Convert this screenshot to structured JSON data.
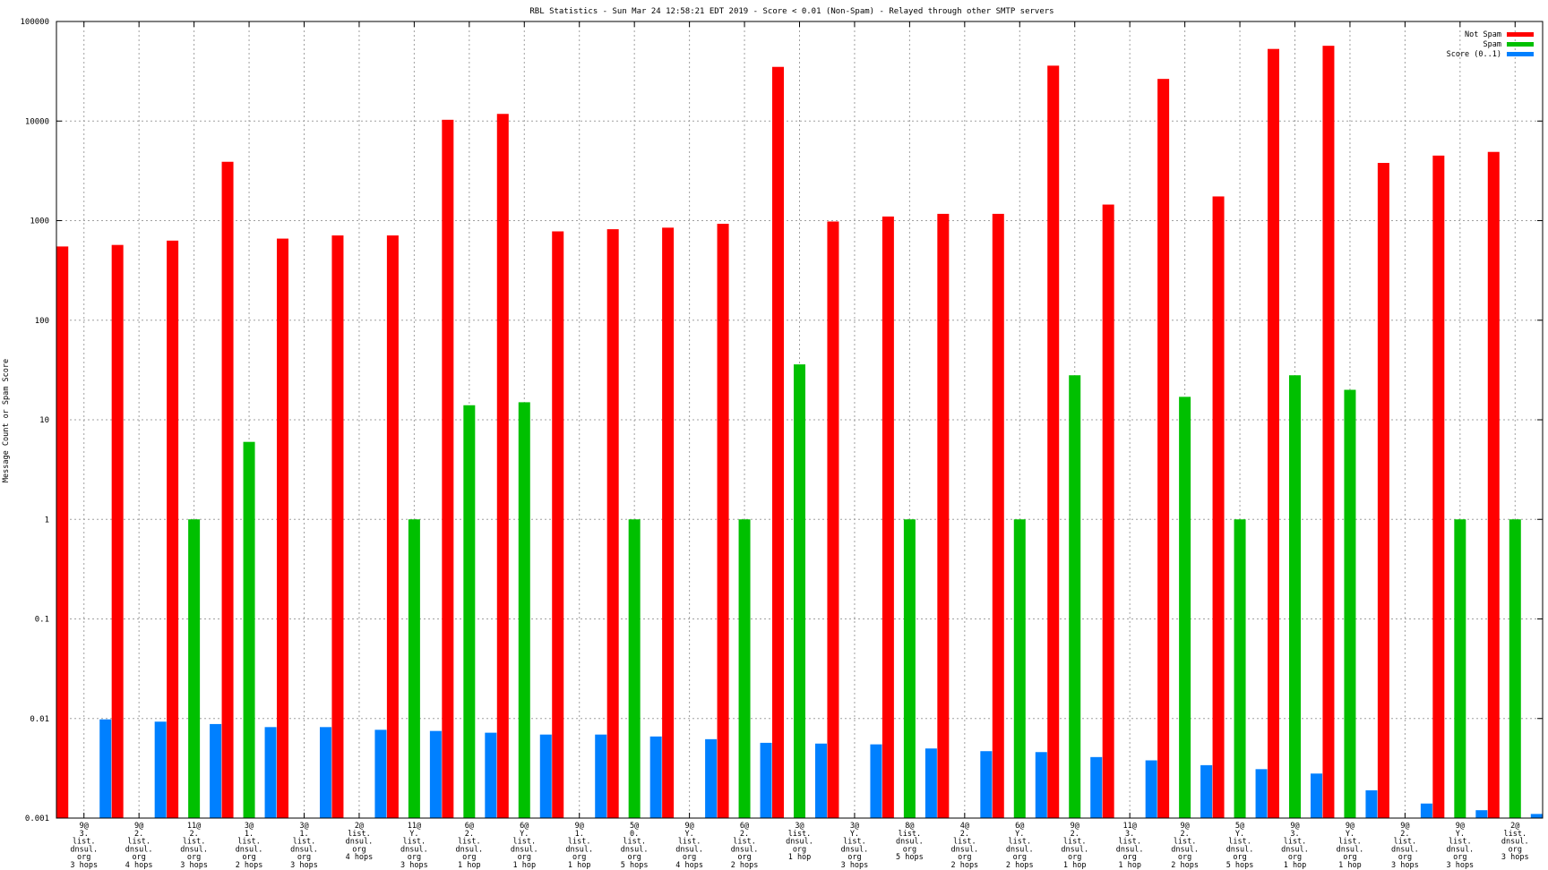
{
  "chart_data": {
    "type": "bar",
    "title": "RBL Statistics - Sun Mar 24 12:58:21 EDT 2019 - Score < 0.01 (Non-Spam) - Relayed through other SMTP servers",
    "ylabel": "Message Count or Spam Score",
    "xlabel": "",
    "yscale": "log",
    "ylim": [
      0.001,
      100000
    ],
    "yticks": [
      "0.001",
      "0.01",
      "0.1",
      "1",
      "10",
      "100",
      "1000",
      "10000",
      "100000"
    ],
    "grid": true,
    "legend_position": "top-right",
    "categories": [
      [
        "9@",
        "3.",
        "list.",
        "dnsul.",
        "org",
        "3 hops"
      ],
      [
        "9@",
        "2.",
        "list.",
        "dnsul.",
        "org",
        "4 hops"
      ],
      [
        "11@",
        "2.",
        "list.",
        "dnsul.",
        "org",
        "3 hops"
      ],
      [
        "3@",
        "1.",
        "list.",
        "dnsul.",
        "org",
        "2 hops"
      ],
      [
        "3@",
        "1.",
        "list.",
        "dnsul.",
        "org",
        "3 hops"
      ],
      [
        "2@",
        "list.",
        "dnsul.",
        "org",
        "4 hops"
      ],
      [
        "11@",
        "Y.",
        "list.",
        "dnsul.",
        "org",
        "3 hops"
      ],
      [
        "6@",
        "2.",
        "list.",
        "dnsul.",
        "org",
        "1 hop"
      ],
      [
        "6@",
        "Y.",
        "list.",
        "dnsul.",
        "org",
        "1 hop"
      ],
      [
        "9@",
        "1.",
        "list.",
        "dnsul.",
        "org",
        "1 hop"
      ],
      [
        "5@",
        "0.",
        "list.",
        "dnsul.",
        "org",
        "5 hops"
      ],
      [
        "9@",
        "Y.",
        "list.",
        "dnsul.",
        "org",
        "4 hops"
      ],
      [
        "6@",
        "2.",
        "list.",
        "dnsul.",
        "org",
        "2 hops"
      ],
      [
        "3@",
        "list.",
        "dnsul.",
        "org",
        "1 hop"
      ],
      [
        "3@",
        "Y.",
        "list.",
        "dnsul.",
        "org",
        "3 hops"
      ],
      [
        "8@",
        "list.",
        "dnsul.",
        "org",
        "5 hops"
      ],
      [
        "4@",
        "2.",
        "list.",
        "dnsul.",
        "org",
        "2 hops"
      ],
      [
        "6@",
        "Y.",
        "list.",
        "dnsul.",
        "org",
        "2 hops"
      ],
      [
        "9@",
        "2.",
        "list.",
        "dnsul.",
        "org",
        "1 hop"
      ],
      [
        "11@",
        "3.",
        "list.",
        "dnsul.",
        "org",
        "1 hop"
      ],
      [
        "9@",
        "2.",
        "list.",
        "dnsul.",
        "org",
        "2 hops"
      ],
      [
        "5@",
        "Y.",
        "list.",
        "dnsul.",
        "org",
        "5 hops"
      ],
      [
        "9@",
        "3.",
        "list.",
        "dnsul.",
        "org",
        "1 hop"
      ],
      [
        "9@",
        "Y.",
        "list.",
        "dnsul.",
        "org",
        "1 hop"
      ],
      [
        "9@",
        "2.",
        "list.",
        "dnsul.",
        "org",
        "3 hops"
      ],
      [
        "9@",
        "Y.",
        "list.",
        "dnsul.",
        "org",
        "3 hops"
      ],
      [
        "2@",
        "list.",
        "dnsul.",
        "org",
        "3 hops"
      ]
    ],
    "series": [
      {
        "name": "Not Spam",
        "color": "#ff0000",
        "values": [
          550,
          570,
          630,
          3900,
          660,
          710,
          710,
          10300,
          11800,
          780,
          820,
          850,
          930,
          35000,
          980,
          1100,
          1170,
          1170,
          36000,
          1450,
          26500,
          1750,
          53000,
          57000,
          3800,
          4500,
          4900
        ]
      },
      {
        "name": "Spam",
        "color": "#00c000",
        "values": [
          null,
          null,
          1,
          6,
          null,
          null,
          1,
          14,
          15,
          null,
          1,
          null,
          1,
          36,
          null,
          1,
          null,
          1,
          28,
          null,
          17,
          1,
          28,
          20,
          null,
          1,
          1
        ]
      },
      {
        "name": "Score (0..1)",
        "color": "#0080ff",
        "values": [
          0.0098,
          0.0093,
          0.0088,
          0.0082,
          0.0082,
          0.0077,
          0.0075,
          0.0072,
          0.0069,
          0.0069,
          0.0066,
          0.0062,
          0.0057,
          0.0056,
          0.0055,
          0.005,
          0.0047,
          0.0046,
          0.0041,
          0.0038,
          0.0034,
          0.0031,
          0.0028,
          0.0019,
          0.0014,
          0.0012,
          0.0011
        ]
      }
    ]
  }
}
